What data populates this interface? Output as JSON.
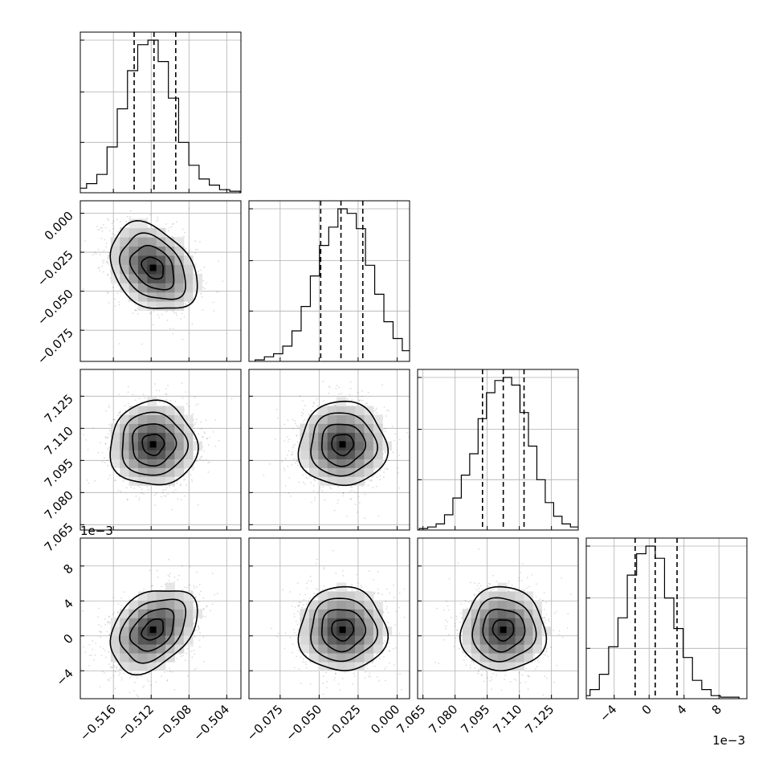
{
  "chart_data": {
    "type": "corner",
    "parameters": [
      {
        "index": 0,
        "offset_label": "",
        "range": [
          -0.5195,
          -0.5025
        ],
        "mean": -0.5118,
        "sd": 0.0023,
        "quantiles": [
          -0.5138,
          -0.5117,
          -0.5094
        ],
        "ticks": [
          -0.516,
          -0.512,
          -0.508,
          -0.504
        ],
        "tick_labels": [
          "−0.516",
          "−0.512",
          "−0.508",
          "−0.504"
        ],
        "hist_counts": [
          1,
          3,
          6,
          12,
          30,
          55,
          80,
          97,
          100,
          86,
          62,
          33,
          18,
          9,
          5,
          2,
          1
        ]
      },
      {
        "index": 1,
        "offset_label": "",
        "range": [
          -0.095,
          0.008
        ],
        "mean": -0.035,
        "sd": 0.014,
        "quantiles": [
          -0.049,
          -0.036,
          -0.022
        ],
        "ticks": [
          -0.075,
          -0.05,
          -0.025,
          0.0
        ],
        "tick_labels": [
          "−0.075",
          "−0.050",
          "−0.025",
          "0.000"
        ],
        "hist_counts": [
          1,
          3,
          5,
          10,
          20,
          36,
          56,
          76,
          88,
          100,
          97,
          87,
          63,
          44,
          26,
          15,
          7,
          3,
          1
        ]
      },
      {
        "index": 2,
        "offset_label": "",
        "range": [
          7.0625,
          7.1375
        ],
        "mean": 7.1025,
        "sd": 0.0098,
        "quantiles": [
          7.0928,
          7.1025,
          7.1122
        ],
        "ticks": [
          7.065,
          7.08,
          7.095,
          7.11,
          7.125
        ],
        "tick_labels": [
          "7.065",
          "7.080",
          "7.095",
          "7.110",
          "7.125"
        ],
        "hist_counts": [
          1,
          2,
          4,
          10,
          21,
          36,
          50,
          73,
          90,
          98,
          100,
          95,
          77,
          55,
          33,
          18,
          9,
          4,
          2,
          1
        ]
      },
      {
        "index": 3,
        "offset_label": "1e−3",
        "range": [
          -7.2,
          11.2
        ],
        "mean": 0.7,
        "sd": 2.4,
        "quantiles": [
          -1.6,
          0.7,
          3.2
        ],
        "ticks": [
          -4,
          0,
          4,
          8
        ],
        "tick_labels": [
          "−4",
          "0",
          "4",
          "8"
        ],
        "hist_counts": [
          1,
          2,
          6,
          16,
          34,
          53,
          81,
          95,
          100,
          92,
          66,
          46,
          27,
          12,
          6,
          2,
          1,
          1
        ]
      }
    ],
    "correlations": [
      {
        "pair": [
          0,
          1
        ],
        "rho": -0.32
      },
      {
        "pair": [
          0,
          2
        ],
        "rho": 0.0
      },
      {
        "pair": [
          1,
          2
        ],
        "rho": 0.0
      },
      {
        "pair": [
          0,
          3
        ],
        "rho": 0.35
      },
      {
        "pair": [
          1,
          3
        ],
        "rho": 0.0
      },
      {
        "pair": [
          2,
          3
        ],
        "rho": 0.0
      }
    ],
    "contour_levels_sigma": [
      0.5,
      1.0,
      1.5,
      2.0
    ],
    "grid": true,
    "quantile_line_style": "dashed"
  }
}
